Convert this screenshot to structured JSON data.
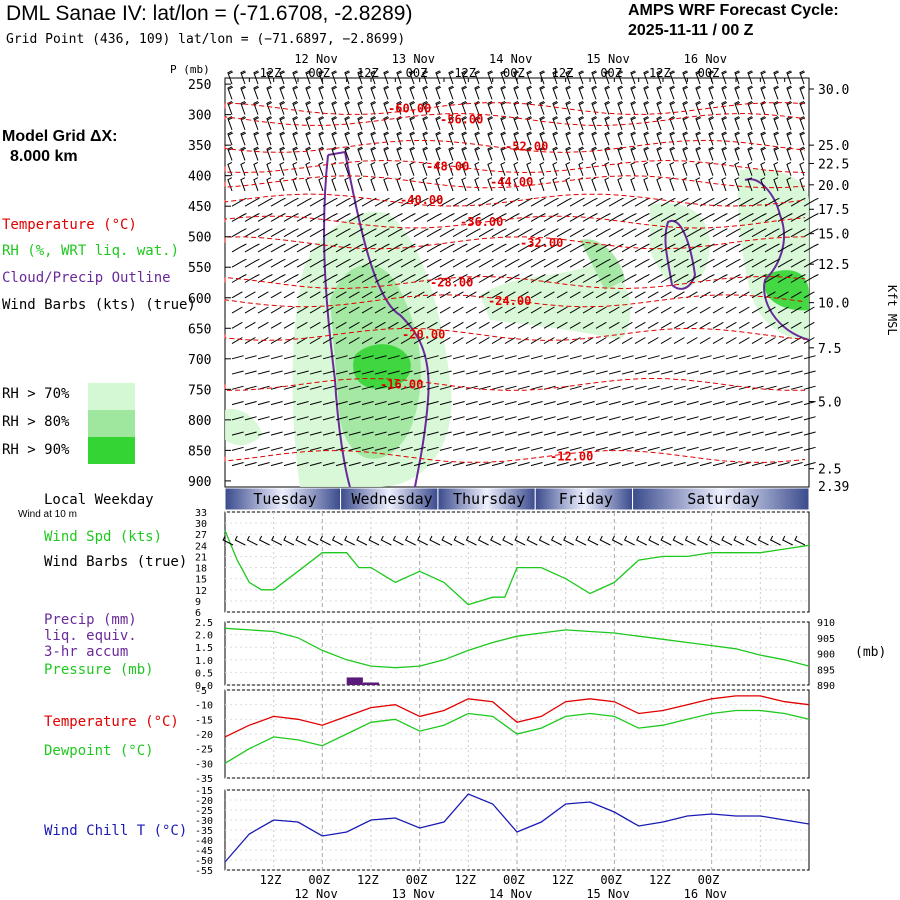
{
  "header": {
    "title": "DML Sanae IV:  lat/lon = (-71.6708, -2.8289)",
    "grid_point": "Grid Point (436, 109) lat/lon = (−71.6897, −2.8699)",
    "cycle_line1": "AMPS WRF Forecast Cycle:",
    "cycle_line2": "2025-11-11 / 00  Z",
    "grid_dx_line1": "Model Grid ΔX:",
    "grid_dx_line2": "8.000 km"
  },
  "legend": {
    "temperature": "Temperature (°C)",
    "rh": "RH (%, WRT liq. wat.)",
    "cloud": "Cloud/Precip Outline",
    "wind": "Wind Barbs (kts) (true)",
    "rh70": "RH > 70%",
    "rh80": "RH > 80%",
    "rh90": "RH > 90%",
    "p_label": "P (mb)",
    "kft_label": "Kft MSL",
    "local_weekday": "Local Weekday",
    "wind_10m": "Wind at 10 m"
  },
  "colors": {
    "temp": "#e00000",
    "rh70": "#d4f7d4",
    "rh80": "#9fe69f",
    "rh90": "#34d434",
    "cloud": "#6a2a9a",
    "green_line": "#1fc81f",
    "blue_line": "#1a1ab4",
    "day_bar": "#3a4a8c",
    "precip": "#5a1a7a"
  },
  "chart_data": [
    {
      "type": "heatmap",
      "name": "time-height cross section",
      "x_axis_top_labels": [
        "12 Nov",
        "13 Nov",
        "14 Nov",
        "15 Nov",
        "16 Nov"
      ],
      "x_hour_labels": [
        "12Z",
        "00Z",
        "12Z",
        "00Z",
        "12Z",
        "00Z",
        "12Z",
        "00Z",
        "12Z",
        "00Z"
      ],
      "pressure_ticks": [
        250,
        300,
        350,
        400,
        450,
        500,
        550,
        600,
        650,
        700,
        750,
        800,
        850,
        900
      ],
      "height_kft_ticks": [
        30.0,
        25.0,
        22.5,
        20.0,
        17.5,
        15.0,
        12.5,
        10.0,
        7.5,
        5.0,
        2.5
      ],
      "surface_height_kft": 2.39,
      "temperature_contours": [
        {
          "label": "-60.00",
          "pressure": 290
        },
        {
          "label": "-56.00",
          "pressure": 308
        },
        {
          "label": "-52.00",
          "pressure": 352
        },
        {
          "label": "-48.00",
          "pressure": 385
        },
        {
          "label": "-44.00",
          "pressure": 410
        },
        {
          "label": "-40.00",
          "pressure": 440
        },
        {
          "label": "-36.00",
          "pressure": 476
        },
        {
          "label": "-32.00",
          "pressure": 510
        },
        {
          "label": "-28.00",
          "pressure": 575
        },
        {
          "label": "-24.00",
          "pressure": 605
        },
        {
          "label": "-20.00",
          "pressure": 660
        },
        {
          "label": "-16.00",
          "pressure": 742
        },
        {
          "label": "-12.00",
          "pressure": 860
        }
      ]
    },
    {
      "type": "line",
      "name": "wind speed",
      "title": "Wind Spd (kts)",
      "subtitle": "Wind Barbs (true)",
      "ylim": [
        6,
        33
      ],
      "yticks": [
        33,
        30,
        27,
        24,
        21,
        18,
        15,
        12,
        9,
        6
      ],
      "x_hours": [
        0,
        3,
        6,
        9,
        12,
        18,
        24,
        30,
        33,
        36,
        42,
        48,
        54,
        60,
        66,
        69,
        72,
        78,
        84,
        90,
        96,
        102,
        108,
        114,
        120,
        126,
        132,
        138,
        144
      ],
      "values": [
        28,
        20,
        14,
        12,
        12,
        17,
        22,
        22,
        18,
        18,
        14,
        17,
        14,
        8,
        10,
        10,
        18,
        18,
        15,
        11,
        14,
        20,
        21,
        21,
        22,
        22,
        22,
        23,
        24
      ],
      "series_color": "#1fc81f"
    },
    {
      "type": "line",
      "name": "pressure and precip",
      "title": "Precip (mm)",
      "subtitle_lines": [
        "liq. equiv.",
        "3-hr accum",
        "Pressure (mb)"
      ],
      "precip_ylim": [
        0,
        2.5
      ],
      "precip_yticks": [
        2.5,
        2.0,
        1.5,
        1.0,
        0.5,
        0.0
      ],
      "pressure_ylim": [
        890,
        910
      ],
      "pressure_yticks": [
        910,
        905,
        900,
        895,
        890
      ],
      "pressure_unit": "(mb)",
      "x_hours": [
        0,
        6,
        12,
        18,
        24,
        30,
        36,
        42,
        48,
        54,
        60,
        66,
        72,
        78,
        84,
        90,
        96,
        102,
        108,
        114,
        120,
        126,
        132,
        138,
        144
      ],
      "pressure": [
        908,
        907.5,
        907,
        905,
        901,
        898,
        896,
        895.5,
        896,
        898,
        901,
        903.5,
        905.5,
        906.5,
        907.5,
        907,
        906.5,
        905.5,
        904.5,
        903.5,
        902.5,
        901.5,
        899.5,
        898,
        896
      ],
      "precip_bars": [
        {
          "x0": 30,
          "x1": 34,
          "value": 0.3
        },
        {
          "x0": 34,
          "x1": 38,
          "value": 0.1
        }
      ]
    },
    {
      "type": "line",
      "name": "temperature and dewpoint",
      "title": "Temperature (°C)",
      "subtitle": "Dewpoint (°C)",
      "ylim": [
        -35,
        -5
      ],
      "yticks": [
        -5,
        -10,
        -15,
        -20,
        -25,
        -30,
        -35
      ],
      "x_hours": [
        0,
        6,
        12,
        18,
        24,
        30,
        36,
        42,
        48,
        54,
        60,
        66,
        72,
        78,
        84,
        90,
        96,
        102,
        108,
        114,
        120,
        126,
        132,
        138,
        144
      ],
      "series": [
        {
          "name": "Temperature",
          "color": "#e00000",
          "values": [
            -21,
            -17,
            -14,
            -15,
            -17,
            -14,
            -11,
            -10,
            -14,
            -12,
            -8,
            -9,
            -16,
            -14,
            -9,
            -8,
            -9,
            -13,
            -12,
            -10,
            -8,
            -7,
            -7,
            -9,
            -10
          ]
        },
        {
          "name": "Dewpoint",
          "color": "#1fc81f",
          "values": [
            -30,
            -25,
            -21,
            -22,
            -24,
            -20,
            -16,
            -15,
            -19,
            -17,
            -13,
            -14,
            -20,
            -18,
            -14,
            -13,
            -14,
            -18,
            -17,
            -15,
            -13,
            -12,
            -12,
            -13,
            -15
          ]
        }
      ]
    },
    {
      "type": "line",
      "name": "wind chill",
      "title": "Wind Chill T (°C)",
      "ylim": [
        -55,
        -15
      ],
      "yticks": [
        -15,
        -20,
        -25,
        -30,
        -35,
        -40,
        -45,
        -50,
        -55
      ],
      "x_hours": [
        0,
        6,
        12,
        18,
        24,
        30,
        36,
        42,
        48,
        54,
        60,
        66,
        72,
        78,
        84,
        90,
        96,
        102,
        108,
        114,
        120,
        126,
        132,
        138,
        144
      ],
      "series": [
        {
          "name": "Wind Chill",
          "color": "#1a1ab4",
          "values": [
            -51,
            -37,
            -30,
            -31,
            -38,
            -36,
            -30,
            -29,
            -34,
            -31,
            -17,
            -22,
            -36,
            -31,
            -22,
            -21,
            -26,
            -33,
            -31,
            -28,
            -27,
            -28,
            -28,
            -30,
            -32
          ]
        }
      ]
    }
  ],
  "days": [
    "Tuesday",
    "Wednesday",
    "Thursday",
    "Friday",
    "Saturday"
  ]
}
